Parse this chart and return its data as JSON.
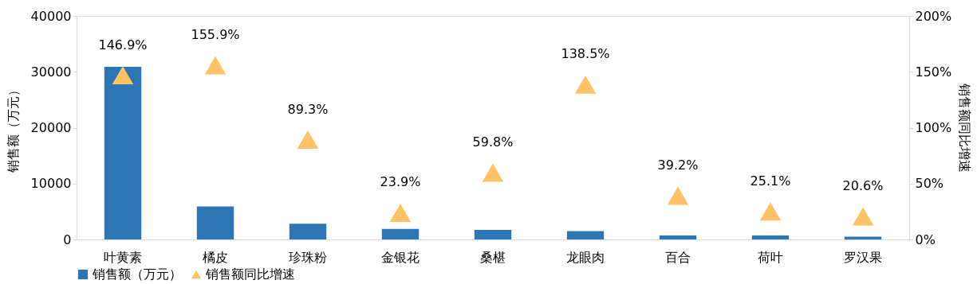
{
  "chart_data": {
    "type": "bar",
    "categories": [
      "叶黄素",
      "橘皮",
      "珍珠粉",
      "金银花",
      "桑椹",
      "龙眼肉",
      "百合",
      "荷叶",
      "罗汉果"
    ],
    "ylabel": "销售额（万元）",
    "y2label": "销售额同比增速",
    "series": [
      {
        "name": "销售额（万元）",
        "color": "#2e75b6",
        "values": [
          30900,
          5900,
          2800,
          1900,
          1700,
          1500,
          700,
          700,
          500
        ]
      },
      {
        "name": "销售额同比增速",
        "type": "scatter",
        "axis": "y2",
        "color": "#ffc266",
        "values": [
          146.9,
          155.9,
          89.3,
          23.9,
          59.8,
          138.5,
          39.2,
          25.1,
          20.6
        ],
        "value_labels": [
          "146.9%",
          "155.9%",
          "89.3%",
          "23.9%",
          "59.8%",
          "138.5%",
          "39.2%",
          "25.1%",
          "20.6%"
        ]
      }
    ],
    "ylim": [
      0,
      40000
    ],
    "yticks": [
      0,
      10000,
      20000,
      30000,
      40000
    ],
    "y2lim": [
      0,
      200
    ],
    "y2ticks": [
      {
        "value": 0,
        "label": "0%"
      },
      {
        "value": 50,
        "label": "50%"
      },
      {
        "value": 100,
        "label": "100%"
      },
      {
        "value": 150,
        "label": "150%"
      },
      {
        "value": 200,
        "label": "200%"
      }
    ],
    "marker": "triangle",
    "grid": false,
    "legend": "bottom"
  }
}
